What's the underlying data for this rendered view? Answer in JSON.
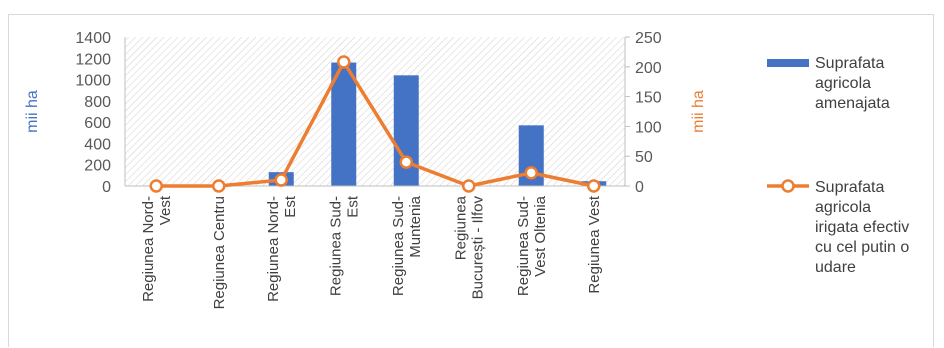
{
  "chart_data": {
    "type": "bar",
    "categories": [
      [
        "Regiunea Nord-",
        "Vest"
      ],
      [
        "Regiunea Centru"
      ],
      [
        "Regiunea Nord-",
        "Est"
      ],
      [
        "Regiunea Sud-",
        "Est"
      ],
      [
        "Regiunea Sud-",
        "Muntenia"
      ],
      [
        "Regiunea",
        "București - Ilfov"
      ],
      [
        "Regiunea Sud-",
        "Vest Oltenia"
      ],
      [
        "Regiunea Vest"
      ]
    ],
    "series": [
      {
        "name": "Suprafata agricola amenajata",
        "legend_lines": [
          "Suprafata",
          "agricola",
          "amenajata"
        ],
        "type": "bar",
        "axis": "left",
        "color": "#4472c4",
        "values": [
          5,
          2,
          130,
          1160,
          1040,
          3,
          570,
          45
        ]
      },
      {
        "name": "Suprafata agricola irigata efectiv cu cel putin o udare",
        "legend_lines": [
          "Suprafata",
          "agricola",
          "irigata efectiv",
          "cu cel putin o",
          "udare"
        ],
        "type": "line",
        "axis": "right",
        "color": "#ed7d31",
        "values": [
          0,
          0,
          10,
          208,
          40,
          0,
          22,
          0
        ]
      }
    ],
    "ylabel": "mii ha",
    "y2label": "mii ha",
    "ylim": [
      0,
      1400
    ],
    "y2lim": [
      0,
      250
    ],
    "yticks": [
      "0",
      "200",
      "400",
      "600",
      "800",
      "1000",
      "1200",
      "1400"
    ],
    "y2ticks": [
      "0",
      "50",
      "100",
      "150",
      "200",
      "250"
    ],
    "plot_background": "hatched",
    "legend_position": "right"
  }
}
